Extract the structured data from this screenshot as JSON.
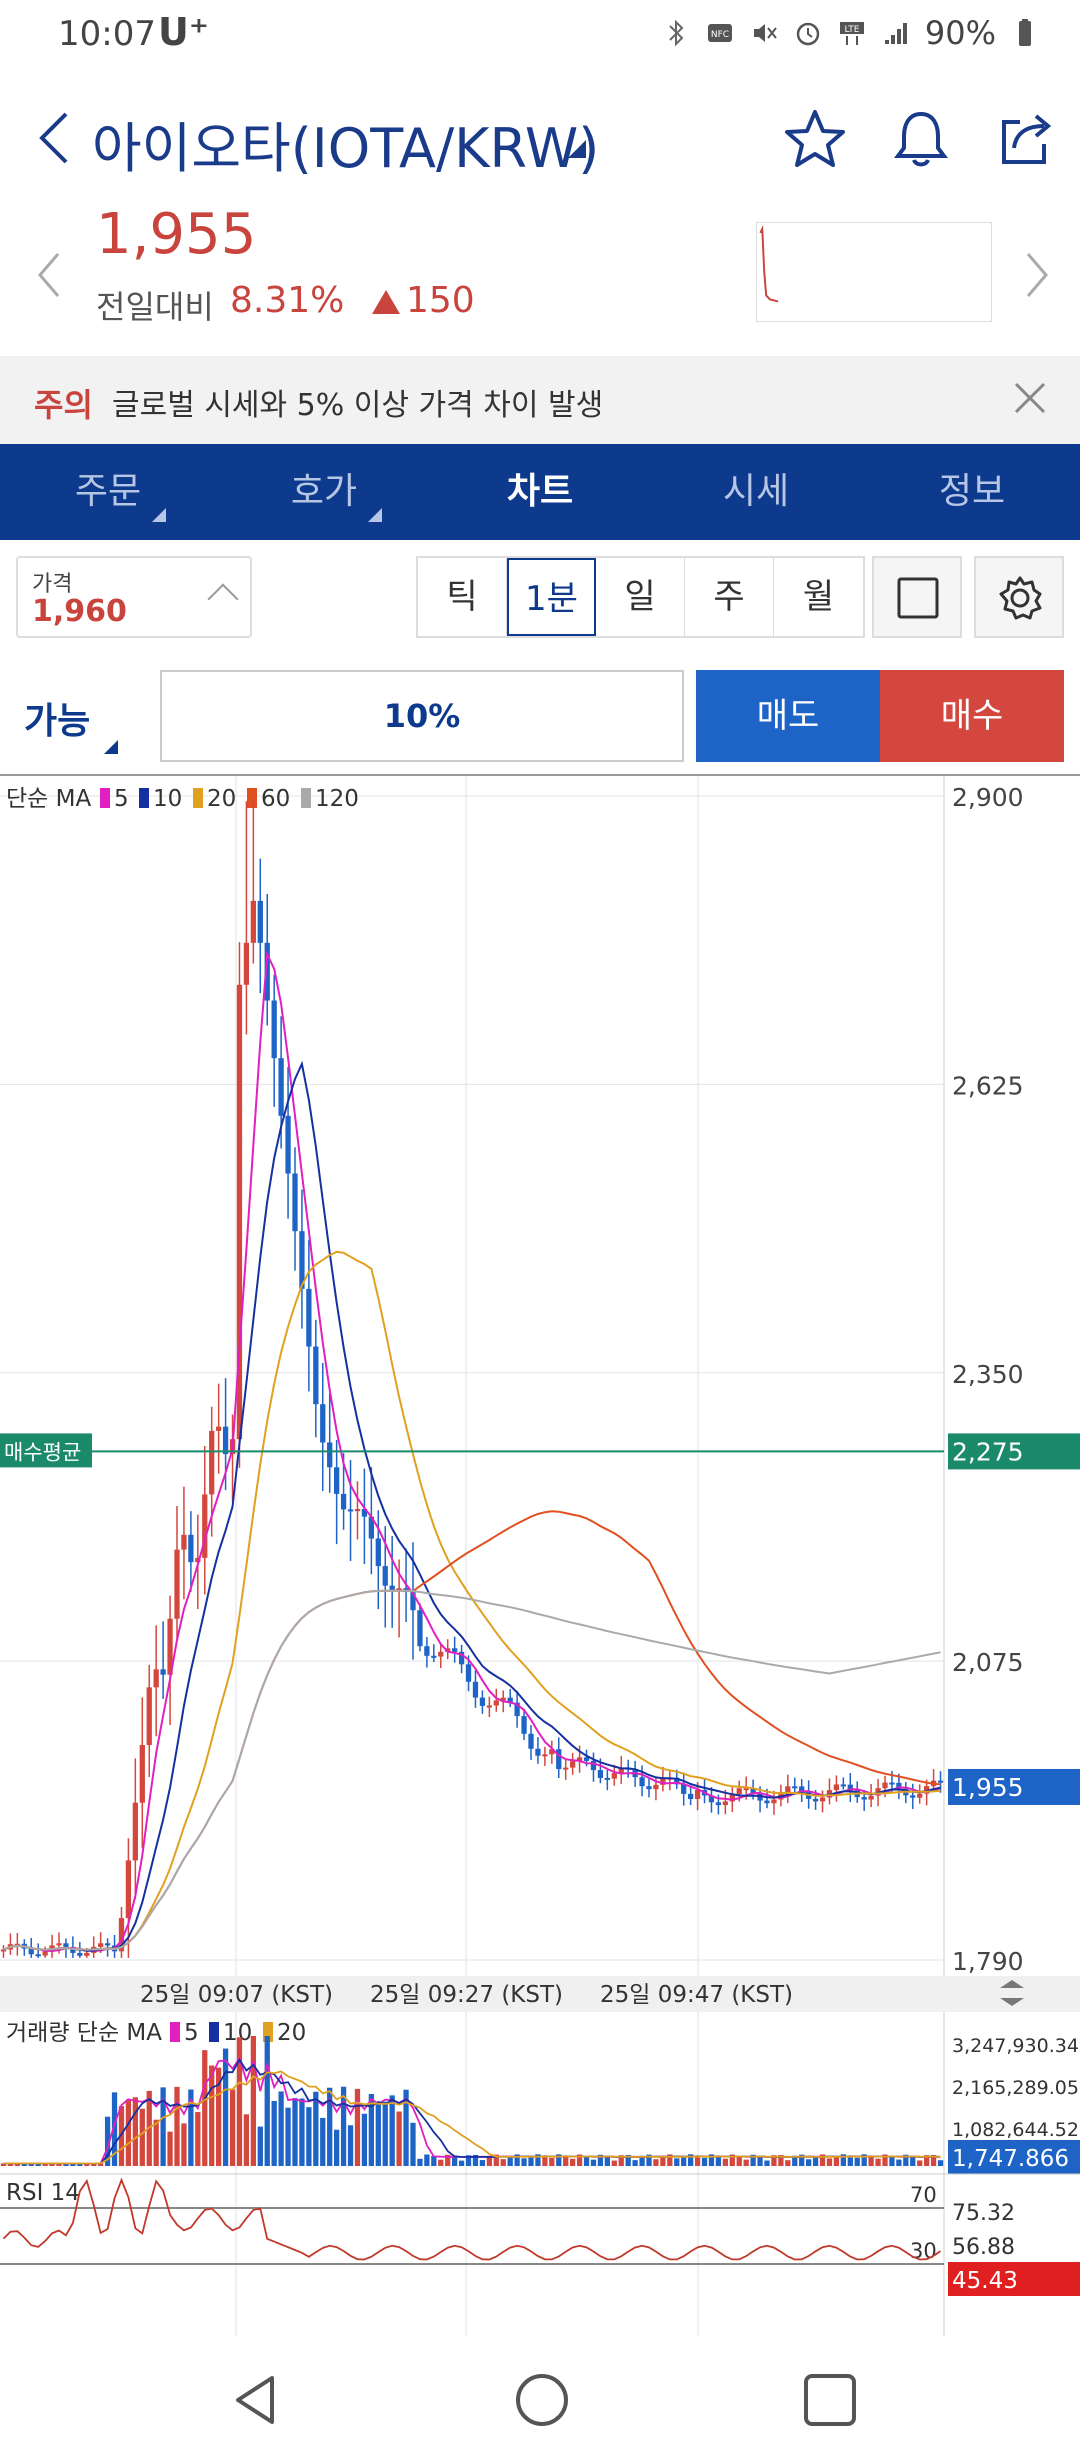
{
  "status": {
    "time": "10:07",
    "carrier": "U⁺",
    "battery": "90%"
  },
  "header": {
    "title": "아이오타(IOTA/KRW)"
  },
  "price": {
    "current": "1,955",
    "compare_label": "전일대비",
    "change_pct": "8.31%",
    "change_abs": "150"
  },
  "warning": {
    "tag": "주의",
    "text": "글로벌 시세와 5% 이상 가격 차이 발생"
  },
  "tabs": [
    {
      "label": "주문",
      "active": false
    },
    {
      "label": "호가",
      "active": false
    },
    {
      "label": "차트",
      "active": true
    },
    {
      "label": "시세",
      "active": false
    },
    {
      "label": "정보",
      "active": false
    }
  ],
  "toolbar": {
    "price_label": "가격",
    "price_value": "1,960",
    "periods": [
      "틱",
      "1분",
      "일",
      "주",
      "월"
    ],
    "active_period": "1분"
  },
  "order": {
    "avail_label": "가능",
    "pct": "10%",
    "sell": "매도",
    "buy": "매수"
  },
  "chart_data": {
    "type": "candlestick",
    "legend_prefix": "단순 MA",
    "ma_legend": [
      {
        "period": "5",
        "color": "#e020c0"
      },
      {
        "period": "10",
        "color": "#1530a0"
      },
      {
        "period": "20",
        "color": "#e0a020"
      },
      {
        "period": "60",
        "color": "#e05020"
      },
      {
        "period": "120",
        "color": "#aaaaaa"
      }
    ],
    "y_ticks": [
      "2,900",
      "2,625",
      "2,350",
      "2,075",
      "1,790"
    ],
    "y_tick_values": [
      2900,
      2625,
      2350,
      2075,
      1790
    ],
    "ylim": [
      1790,
      2900
    ],
    "avg_buy_label": "매수평균",
    "avg_buy_value": "2,275",
    "last_price": "1,955",
    "x_labels": [
      "25일 09:07 (KST)",
      "25일 09:27 (KST)",
      "25일 09:47 (KST)"
    ],
    "volume": {
      "label": "거래량 단순 MA",
      "ma_legend": [
        "5",
        "10",
        "20"
      ],
      "ticks": [
        "3,247,930.342",
        "2,165,289.052",
        "1,082,644.526"
      ],
      "last": "1,747.866"
    },
    "rsi": {
      "label": "RSI 14",
      "levels": [
        "70",
        "30"
      ],
      "side_values": [
        "75.32",
        "56.88"
      ],
      "current": "45.43"
    }
  }
}
